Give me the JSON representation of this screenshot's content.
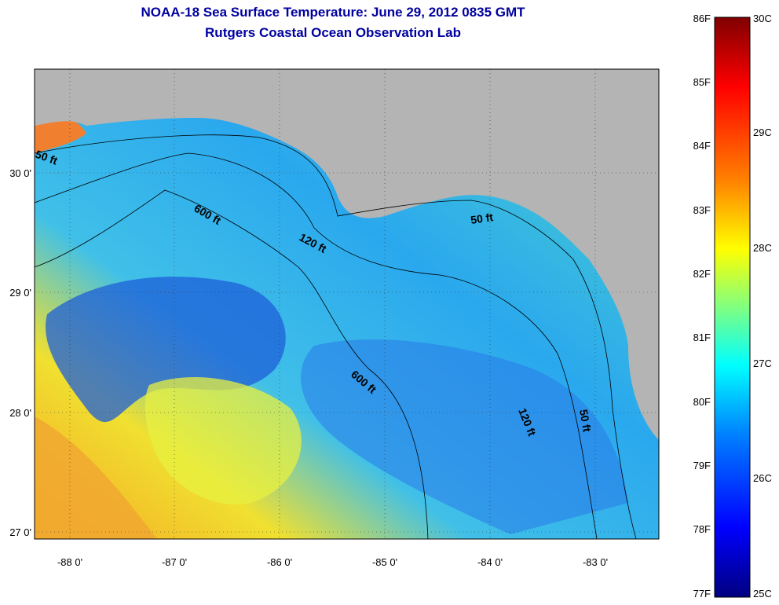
{
  "title": "NOAA-18 Sea Surface Temperature:  June 29, 2012 0835 GMT",
  "subtitle": "Rutgers Coastal Ocean Observation Lab",
  "map": {
    "lon_range": [
      -88.33,
      -82.38
    ],
    "lat_range": [
      26.96,
      30.87
    ],
    "lon_ticks": [
      "-88 0'",
      "-87 0'",
      "-86 0'",
      "-85 0'",
      "-84 0'",
      "-83 0'"
    ],
    "lat_ticks": [
      "30 0'",
      "29 0'",
      "28 0'",
      "27 0'"
    ],
    "land_color": "#b4b4b4",
    "contour_labels": [
      "50 ft",
      "600 ft",
      "120 ft",
      "50 ft",
      "600 ft",
      "120 ft",
      "50 ft"
    ]
  },
  "colorbar": {
    "f_labels": [
      "86F",
      "85F",
      "84F",
      "83F",
      "82F",
      "81F",
      "80F",
      "79F",
      "78F",
      "77F"
    ],
    "c_labels": [
      "30C",
      "29C",
      "28C",
      "27C",
      "26C",
      "25C"
    ],
    "colors": [
      "#800000",
      "#ff0000",
      "#ff8000",
      "#ffff00",
      "#80ff80",
      "#00ffff",
      "#0080ff",
      "#0000ff",
      "#000080"
    ]
  }
}
